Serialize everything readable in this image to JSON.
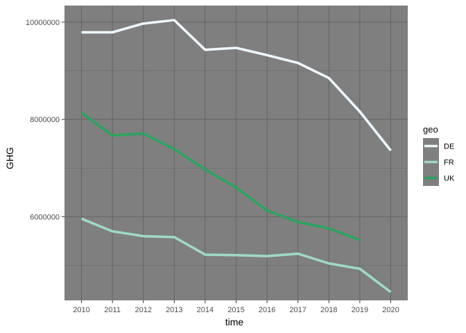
{
  "chart_data": {
    "type": "line",
    "xlabel": "time",
    "ylabel": "GHG",
    "x": [
      2010,
      2011,
      2012,
      2013,
      2014,
      2015,
      2016,
      2017,
      2018,
      2019,
      2020
    ],
    "x_tick_labels": [
      "2010",
      "2011",
      "2012",
      "2013",
      "2014",
      "2015",
      "2016",
      "2017",
      "2018",
      "2019",
      "2020"
    ],
    "y_ticks": [
      6000000,
      8000000,
      10000000
    ],
    "y_tick_labels": [
      "6000000",
      "8000000",
      "10000000"
    ],
    "ylim": [
      4280000,
      10340000
    ],
    "xlim": [
      2009.45,
      2020.55
    ],
    "grid": true,
    "legend": {
      "title": "geo",
      "position": "right"
    },
    "panel_color": "#7f7f7f",
    "grid_color": "#666666",
    "series": [
      {
        "name": "DE",
        "color": "#eef7fb",
        "values": [
          9790000,
          9790000,
          9970000,
          10040000,
          9430000,
          9470000,
          9320000,
          9160000,
          8850000,
          8160000,
          7360000
        ]
      },
      {
        "name": "FR",
        "color": "#9fd9c6",
        "values": [
          5960000,
          5700000,
          5600000,
          5580000,
          5220000,
          5210000,
          5190000,
          5240000,
          5040000,
          4930000,
          4450000
        ]
      },
      {
        "name": "UK",
        "color": "#2ca25f",
        "values": [
          8140000,
          7670000,
          7710000,
          7390000,
          6970000,
          6600000,
          6130000,
          5890000,
          5760000,
          5520000,
          null
        ]
      }
    ]
  }
}
